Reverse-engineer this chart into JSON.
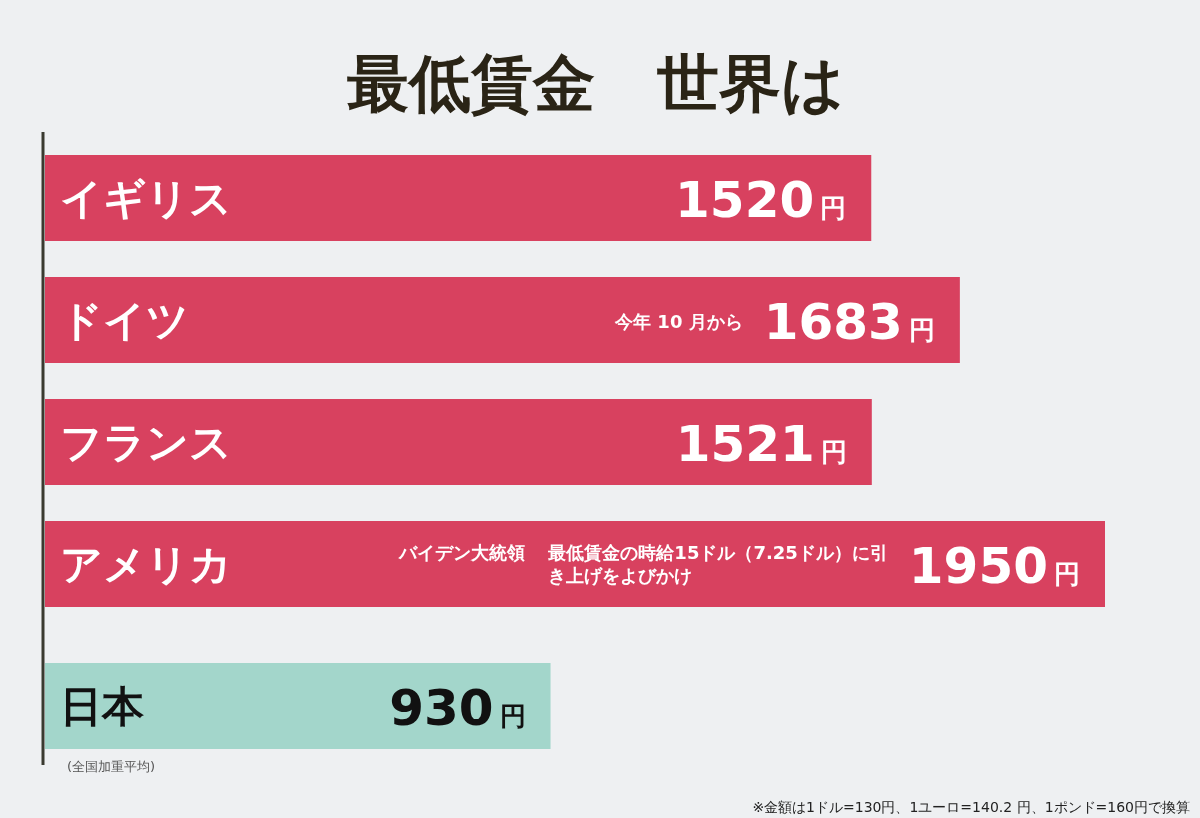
{
  "chart_data": {
    "type": "bar",
    "orientation": "horizontal",
    "title": "最低賃金　世界は",
    "categories": [
      "イギリス",
      "ドイツ",
      "フランス",
      "アメリカ",
      "日本"
    ],
    "values": [
      1520,
      1683,
      1521,
      1950,
      930
    ],
    "colors": [
      "#d8415f",
      "#d8415f",
      "#d8415f",
      "#d8415f",
      "#a3d6cb"
    ],
    "value_labels": [
      "1520円",
      "1683円",
      "1521円",
      "1950円",
      "930円"
    ],
    "annotations": [
      "今年 10 月から",
      "バイデン大統領",
      "最低賃金の時給15ドル（7.25ドル）に引き上げをよびかけ",
      "(全国加重平均)",
      "※金額は1ドル=130円、1ユーロ=140.2 円、1ポンド=160円で換算"
    ]
  }
}
